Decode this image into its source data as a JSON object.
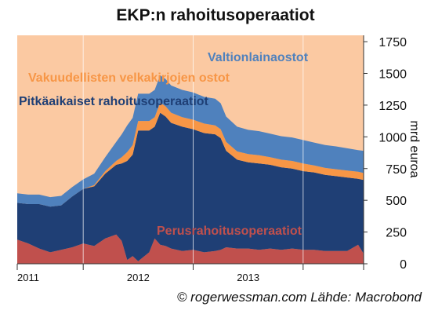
{
  "title": "EKP:n rahoitusoperaatiot",
  "credit": "© rogerwessman.com Lähde: Macrobond",
  "chart_data": {
    "type": "area",
    "stacked": true,
    "x_unit": "year",
    "xlim": [
      2010.9,
      2014.05
    ],
    "x_tick_labels": [
      "2011",
      "2012",
      "2013"
    ],
    "y_axis_position": "right",
    "ylabel": "mrd euroa",
    "ylim": [
      0,
      1800
    ],
    "y_ticks": [
      0,
      250,
      500,
      750,
      1000,
      1250,
      1500,
      1750
    ],
    "grid": false,
    "background": "#fbc9a2",
    "x": [
      2010.9,
      2011.0,
      2011.1,
      2011.2,
      2011.3,
      2011.4,
      2011.5,
      2011.6,
      2011.7,
      2011.8,
      2011.85,
      2011.9,
      2011.95,
      2012.0,
      2012.1,
      2012.15,
      2012.2,
      2012.25,
      2012.3,
      2012.4,
      2012.5,
      2012.6,
      2012.7,
      2012.75,
      2012.8,
      2012.9,
      2013.0,
      2013.1,
      2013.2,
      2013.3,
      2013.4,
      2013.5,
      2013.6,
      2013.7,
      2013.8,
      2013.9,
      2014.0,
      2014.05
    ],
    "series": [
      {
        "name": "Perusrahoitusoperaatiot",
        "color": "#c0504d",
        "values": [
          190,
          160,
          120,
          90,
          110,
          130,
          160,
          140,
          200,
          230,
          180,
          30,
          60,
          20,
          90,
          200,
          150,
          140,
          120,
          100,
          110,
          90,
          100,
          110,
          130,
          120,
          120,
          110,
          120,
          110,
          120,
          110,
          110,
          100,
          100,
          100,
          150,
          80
        ]
      },
      {
        "name": "Pitkäaikaiset rahoitusoperaatiot",
        "color": "#1f3f75",
        "values": [
          290,
          310,
          350,
          360,
          350,
          400,
          430,
          470,
          510,
          550,
          610,
          780,
          800,
          1030,
          960,
          880,
          1040,
          1020,
          990,
          980,
          950,
          940,
          920,
          880,
          760,
          700,
          680,
          680,
          660,
          650,
          630,
          620,
          610,
          600,
          590,
          580,
          520,
          580
        ]
      },
      {
        "name": "Vakuudellisten velkakirjojen ostot",
        "color": "#f79646",
        "values": [
          0,
          0,
          0,
          0,
          0,
          0,
          0,
          10,
          20,
          30,
          50,
          70,
          75,
          75,
          75,
          75,
          80,
          80,
          80,
          75,
          75,
          75,
          70,
          70,
          70,
          65,
          65,
          65,
          60,
          60,
          60,
          60,
          55,
          55,
          55,
          55,
          55,
          55
        ]
      },
      {
        "name": "Valtionlainaostot",
        "color": "#4f81bd",
        "values": [
          75,
          75,
          75,
          75,
          75,
          75,
          75,
          90,
          110,
          150,
          180,
          210,
          215,
          215,
          215,
          215,
          215,
          215,
          215,
          215,
          215,
          210,
          210,
          205,
          200,
          195,
          190,
          190,
          185,
          185,
          185,
          185,
          180,
          180,
          180,
          175,
          170,
          175
        ]
      }
    ]
  }
}
